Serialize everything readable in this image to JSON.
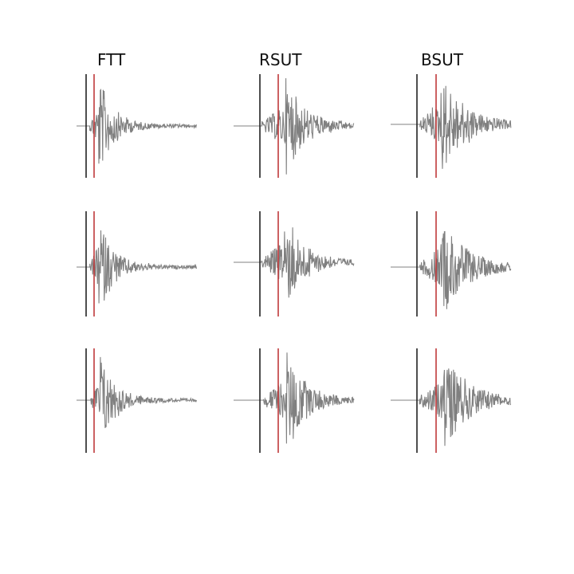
{
  "columns": [
    "FTT",
    "RSUT",
    "BSUT"
  ]
}
